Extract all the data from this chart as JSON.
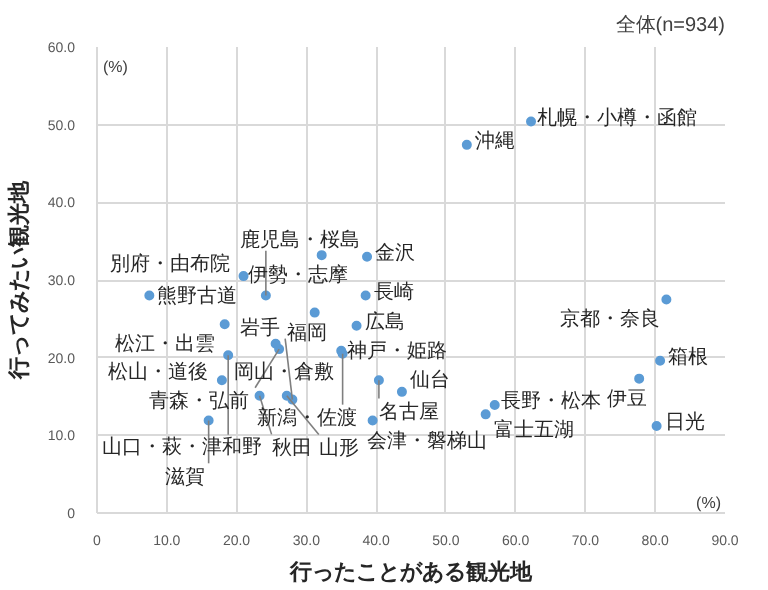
{
  "chart_data": {
    "type": "scatter",
    "xlabel": "行ったことがある観光地",
    "ylabel": "行ってみたい観光地",
    "x": [
      32.2,
      38.7,
      62.2,
      53.0,
      7.5,
      21.0,
      24.2,
      38.5,
      31.2,
      37.2,
      18.3,
      25.6,
      26.1,
      35.0,
      35.2,
      18.8,
      17.9,
      23.3,
      27.2,
      28.0,
      16.0,
      39.5,
      40.4,
      43.7,
      57.0,
      55.7,
      81.6,
      80.7,
      77.7,
      80.2
    ],
    "series": [
      {
        "color": "#5b9bd5",
        "values": [
          33.2,
          33.0,
          50.4,
          47.4,
          28.0,
          30.5,
          28.0,
          28.0,
          25.8,
          24.1,
          24.3,
          21.8,
          21.1,
          20.9,
          20.5,
          20.3,
          17.1,
          15.1,
          15.1,
          14.6,
          11.9,
          11.9,
          17.1,
          15.6,
          13.9,
          12.7,
          27.5,
          19.6,
          17.3,
          11.2
        ]
      }
    ],
    "xlim": [
      0,
      90
    ],
    "ylim": [
      0,
      60
    ],
    "xticks": [
      0,
      {
        "value": 10,
        "label": "10.0"
      },
      {
        "value": 20,
        "label": "20.0"
      },
      {
        "value": 30,
        "label": "30.0"
      },
      {
        "value": 40,
        "label": "40.0"
      },
      {
        "value": 50,
        "label": "50.0"
      },
      {
        "value": 60,
        "label": "60.0"
      },
      {
        "value": 70,
        "label": "70.0"
      },
      {
        "value": 80,
        "label": "80.0"
      },
      {
        "value": 90,
        "label": "90.0"
      }
    ],
    "yticks": [
      0,
      {
        "value": 10,
        "label": "10.0"
      },
      {
        "value": 20,
        "label": "20.0"
      },
      {
        "value": 30,
        "label": "30.0"
      },
      {
        "value": 40,
        "label": "40.0"
      },
      {
        "value": 50,
        "label": "50.0"
      },
      {
        "value": 60,
        "label": "60.0"
      }
    ],
    "grid": true,
    "marker": "circle",
    "annotations": [
      "全体(n=934)",
      "(%)",
      "(%)",
      {
        "text": "伊勢・志摩",
        "x": 32.2,
        "y": 33.2
      },
      {
        "text": "金沢",
        "x": 38.7,
        "y": 33.0
      },
      {
        "text": "札幌・小樽・函館",
        "x": 62.2,
        "y": 50.4
      },
      {
        "text": "沖縄",
        "x": 53.0,
        "y": 47.4
      },
      {
        "text": "熊野古道",
        "x": 7.5,
        "y": 28.0
      },
      {
        "text": "別府・由布院",
        "x": 21.0,
        "y": 30.5
      },
      {
        "text": "鹿児島・桜島",
        "x": 24.2,
        "y": 28.0
      },
      {
        "text": "長崎",
        "x": 38.5,
        "y": 28.0
      },
      {
        "text": "福岡",
        "x": 31.2,
        "y": 25.8
      },
      {
        "text": "広島",
        "x": 37.2,
        "y": 24.1
      },
      {
        "text": "松江・出雲",
        "x": 18.3,
        "y": 24.3
      },
      {
        "text": "岡山・倉敷",
        "x": 25.6,
        "y": 21.8
      },
      {
        "text": "青森・弘前",
        "x": 26.1,
        "y": 21.1
      },
      {
        "text": "神戸・姫路",
        "x": 35.0,
        "y": 20.9
      },
      {
        "text": "新潟・佐渡",
        "x": 35.2,
        "y": 20.5
      },
      {
        "text": "山口・萩・津和野",
        "x": 18.8,
        "y": 20.3
      },
      {
        "text": "松山・道後",
        "x": 17.9,
        "y": 17.1
      },
      {
        "text": "秋田",
        "x": 23.3,
        "y": 15.1
      },
      {
        "text": "山形",
        "x": 27.2,
        "y": 15.1
      },
      {
        "text": "岩手",
        "x": 28.0,
        "y": 14.6
      },
      {
        "text": "滋賀",
        "x": 16.0,
        "y": 11.9
      },
      {
        "text": "会津・磐梯山",
        "x": 39.5,
        "y": 11.9
      },
      {
        "text": "名古屋",
        "x": 40.4,
        "y": 17.1
      },
      {
        "text": "仙台",
        "x": 43.7,
        "y": 15.6
      },
      {
        "text": "長野・松本",
        "x": 57.0,
        "y": 13.9
      },
      {
        "text": "富士五湖",
        "x": 55.7,
        "y": 12.7
      },
      {
        "text": "京都・奈良",
        "x": 81.6,
        "y": 27.5
      },
      {
        "text": "箱根",
        "x": 80.7,
        "y": 19.6
      },
      {
        "text": "伊豆",
        "x": 77.7,
        "y": 17.3
      },
      {
        "text": "日光",
        "x": 80.2,
        "y": 11.2
      }
    ]
  }
}
